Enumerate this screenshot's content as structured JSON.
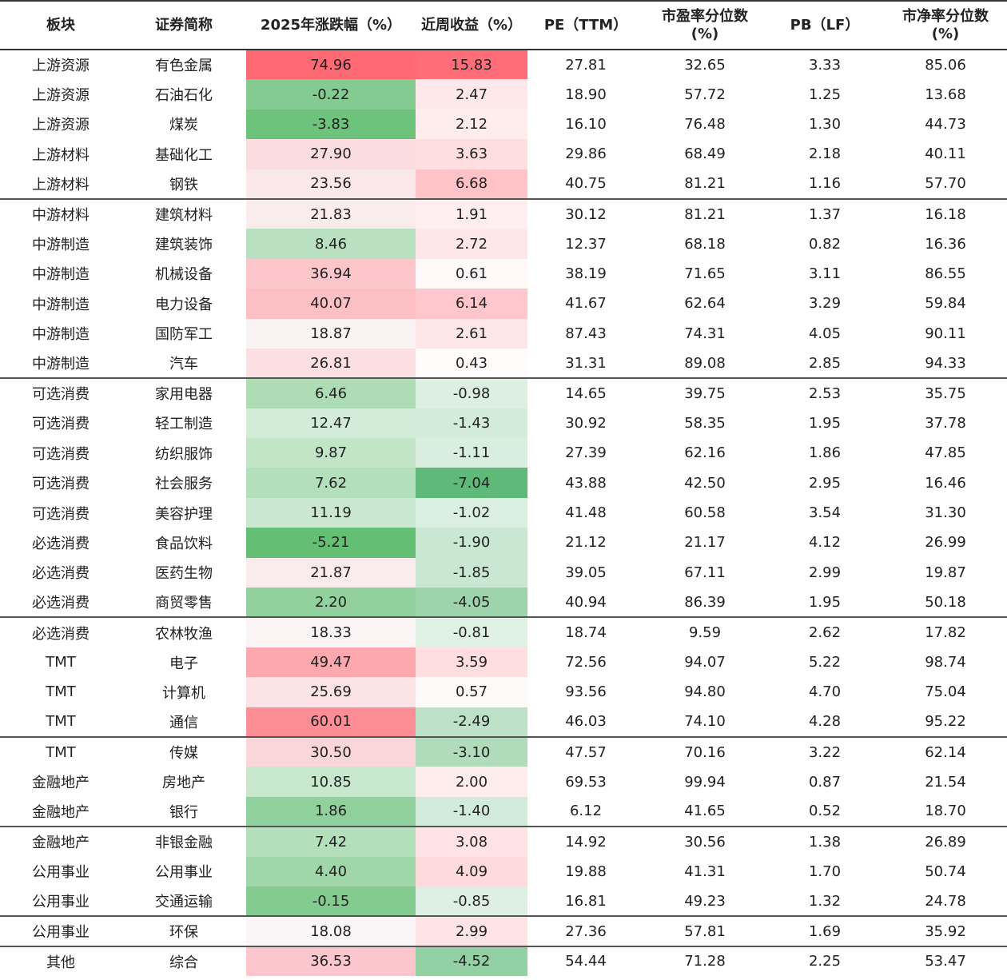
{
  "chart_data": {
    "type": "table",
    "columns": [
      "板块",
      "证券简称",
      "2025年涨跌幅（%）",
      "近周收益（%）",
      "PE（TTM）",
      "市盈率分位数\n(%)",
      "PB（LF）",
      "市净率分位数\n(%)"
    ],
    "heatmap_columns": [
      2,
      3
    ],
    "group_ends": [
      4,
      10,
      18,
      22,
      25,
      28,
      29
    ],
    "rows": [
      [
        "上游资源",
        "有色金属",
        "74.96",
        "15.83",
        "27.81",
        "32.65",
        "3.33",
        "85.06"
      ],
      [
        "上游资源",
        "石油石化",
        "-0.22",
        "2.47",
        "18.90",
        "57.72",
        "1.25",
        "13.68"
      ],
      [
        "上游资源",
        "煤炭",
        "-3.83",
        "2.12",
        "16.10",
        "76.48",
        "1.30",
        "44.73"
      ],
      [
        "上游材料",
        "基础化工",
        "27.90",
        "3.63",
        "29.86",
        "68.49",
        "2.18",
        "40.11"
      ],
      [
        "上游材料",
        "钢铁",
        "23.56",
        "6.68",
        "40.75",
        "81.21",
        "1.16",
        "57.70"
      ],
      [
        "中游材料",
        "建筑材料",
        "21.83",
        "1.91",
        "30.12",
        "81.21",
        "1.37",
        "16.18"
      ],
      [
        "中游制造",
        "建筑装饰",
        "8.46",
        "2.72",
        "12.37",
        "68.18",
        "0.82",
        "16.36"
      ],
      [
        "中游制造",
        "机械设备",
        "36.94",
        "0.61",
        "38.19",
        "71.65",
        "3.11",
        "86.55"
      ],
      [
        "中游制造",
        "电力设备",
        "40.07",
        "6.14",
        "41.67",
        "62.64",
        "3.29",
        "59.84"
      ],
      [
        "中游制造",
        "国防军工",
        "18.87",
        "2.61",
        "87.43",
        "74.31",
        "4.05",
        "90.11"
      ],
      [
        "中游制造",
        "汽车",
        "26.81",
        "0.43",
        "31.31",
        "89.08",
        "2.85",
        "94.33"
      ],
      [
        "可选消费",
        "家用电器",
        "6.46",
        "-0.98",
        "14.65",
        "39.75",
        "2.53",
        "35.75"
      ],
      [
        "可选消费",
        "轻工制造",
        "12.47",
        "-1.43",
        "30.92",
        "58.35",
        "1.95",
        "37.78"
      ],
      [
        "可选消费",
        "纺织服饰",
        "9.87",
        "-1.11",
        "27.39",
        "62.16",
        "1.86",
        "47.85"
      ],
      [
        "可选消费",
        "社会服务",
        "7.62",
        "-7.04",
        "43.88",
        "42.50",
        "2.95",
        "16.46"
      ],
      [
        "可选消费",
        "美容护理",
        "11.19",
        "-1.02",
        "41.48",
        "60.58",
        "3.54",
        "31.30"
      ],
      [
        "必选消费",
        "食品饮料",
        "-5.21",
        "-1.90",
        "21.12",
        "21.17",
        "4.12",
        "26.99"
      ],
      [
        "必选消费",
        "医药生物",
        "21.87",
        "-1.85",
        "39.05",
        "67.11",
        "2.99",
        "19.87"
      ],
      [
        "必选消费",
        "商贸零售",
        "2.20",
        "-4.05",
        "40.94",
        "86.39",
        "1.95",
        "50.18"
      ],
      [
        "必选消费",
        "农林牧渔",
        "18.33",
        "-0.81",
        "18.74",
        "9.59",
        "2.62",
        "17.82"
      ],
      [
        "TMT",
        "电子",
        "49.47",
        "3.59",
        "72.56",
        "94.07",
        "5.22",
        "98.74"
      ],
      [
        "TMT",
        "计算机",
        "25.69",
        "0.57",
        "93.56",
        "94.80",
        "4.70",
        "75.04"
      ],
      [
        "TMT",
        "通信",
        "60.01",
        "-2.49",
        "46.03",
        "74.10",
        "4.28",
        "95.22"
      ],
      [
        "TMT",
        "传媒",
        "30.50",
        "-3.10",
        "47.57",
        "70.16",
        "3.22",
        "62.14"
      ],
      [
        "金融地产",
        "房地产",
        "10.85",
        "2.00",
        "69.53",
        "99.94",
        "0.87",
        "21.54"
      ],
      [
        "金融地产",
        "银行",
        "1.86",
        "-1.40",
        "6.12",
        "41.65",
        "0.52",
        "18.70"
      ],
      [
        "金融地产",
        "非银金融",
        "7.42",
        "3.08",
        "14.92",
        "30.56",
        "1.38",
        "26.89"
      ],
      [
        "公用事业",
        "公用事业",
        "4.40",
        "4.09",
        "19.88",
        "41.31",
        "1.70",
        "50.74"
      ],
      [
        "公用事业",
        "交通运输",
        "-0.15",
        "-0.85",
        "16.81",
        "49.23",
        "1.32",
        "24.78"
      ],
      [
        "公用事业",
        "环保",
        "18.08",
        "2.99",
        "27.36",
        "57.81",
        "1.69",
        "35.92"
      ],
      [
        "其他",
        "综合",
        "36.53",
        "-4.52",
        "54.44",
        "71.28",
        "2.25",
        "53.47"
      ]
    ]
  }
}
